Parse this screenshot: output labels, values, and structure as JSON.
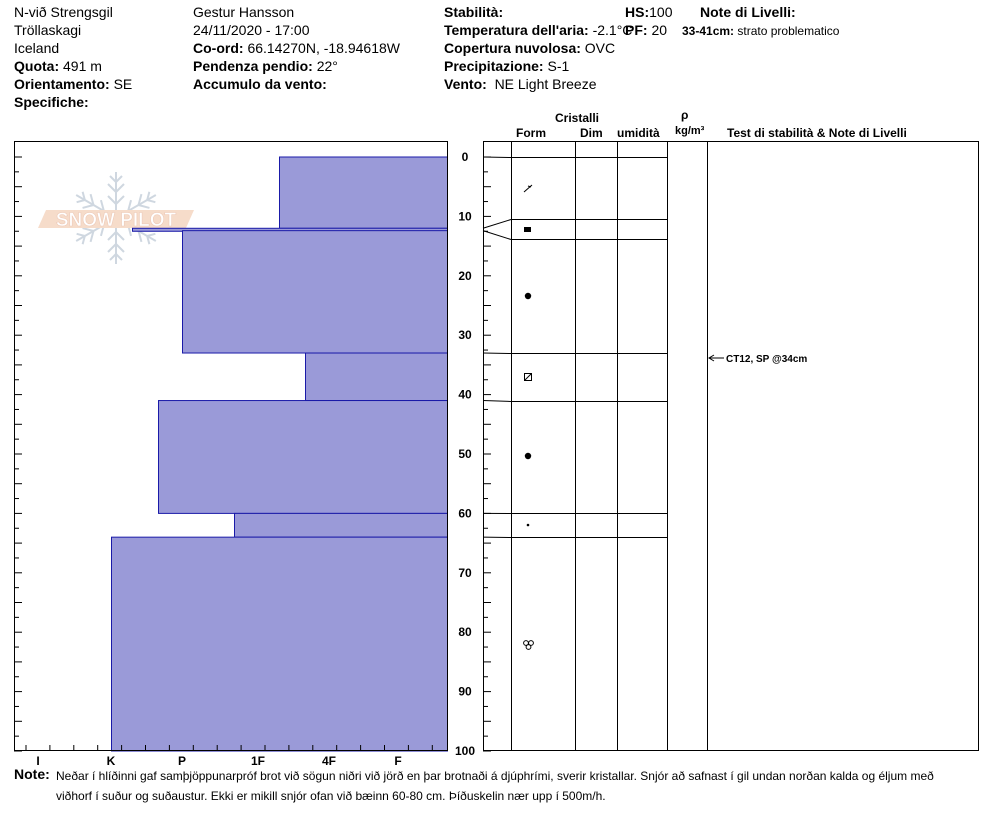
{
  "header": {
    "location": "N-við Strengsgil",
    "region": "Tröllaskagi",
    "country": "Iceland",
    "elevation_label": "Quota:",
    "elevation": "491 m",
    "aspect_label": "Orientamento:",
    "aspect": "SE",
    "specifics_label": "Specifiche:",
    "observer": "Gestur Hansson",
    "datetime": "24/11/2020 - 17:00",
    "coord_label": "Co-ord:",
    "coord": "66.14270N, -18.94618W",
    "slope_label": "Pendenza pendio:",
    "slope": "22°",
    "wind_load_label": "Accumulo da vento:",
    "stability_label": "Stabilità:",
    "air_temp_label": "Temperatura dell'aria:",
    "air_temp": "-2.1°C",
    "cloud_label": "Copertura nuvolosa:",
    "cloud": "OVC",
    "precip_label": "Precipitazione:",
    "precip": "S-1",
    "wind_label": "Vento:",
    "wind": "NE Light Breeze",
    "hs_label": "HS:",
    "hs": "100",
    "pf_label": "PF:",
    "pf": "20",
    "layer_notes_label": "Note di Livelli:",
    "layer_notes_range": "33-41cm:",
    "layer_notes_text": "strato problematico"
  },
  "columns": {
    "crystals": "Cristalli",
    "form": "Form",
    "size": "Dim",
    "moisture": "umidità",
    "rho": "ρ",
    "density_unit": "kg/m³",
    "tests": "Test di stabilità & Note di Livelli"
  },
  "logo_text": "SNOW PILOT",
  "hardness_axis": [
    "I",
    "K",
    "P",
    "1F",
    "4F",
    "F"
  ],
  "depth_axis": [
    "0",
    "10",
    "20",
    "30",
    "40",
    "50",
    "60",
    "70",
    "80",
    "90",
    "100"
  ],
  "stability_test": "CT12, SP @34cm",
  "note_label": "Note:",
  "note_text": "Neðar í hlíðinni gaf samþjöppunarpróf brot við sögun niðri við jörð en þar brotnaði á djúphrími, sverir kristallar. Snjór að safnast í gil undan norðan kalda og éljum með viðhorf í suður og suðaustur. Ekki er mikill snjór ofan við bæinn 60-80 cm. Þíðuskelin nær upp í 500m/h.",
  "colors": {
    "layer_fill": "#9a9ad8",
    "layer_stroke": "#1a1aa8"
  },
  "chart_data": {
    "type": "snow_profile",
    "depth_unit": "cm",
    "depth_range": [
      0,
      100
    ],
    "hardness_scale": [
      "I",
      "K",
      "P",
      "1F",
      "4F",
      "F"
    ],
    "layers": [
      {
        "top": 0,
        "bottom": 12,
        "hardness": "1F-",
        "form": "decomposing"
      },
      {
        "top": 12,
        "bottom": 12.4,
        "hardness": "K-",
        "form": "surface hoar"
      },
      {
        "top": 12.4,
        "bottom": 33,
        "hardness": "P",
        "form": "rounded"
      },
      {
        "top": 33,
        "bottom": 41,
        "hardness": "4F+",
        "form": "faceted-rounded"
      },
      {
        "top": 41,
        "bottom": 60,
        "hardness": "P+",
        "form": "rounded"
      },
      {
        "top": 60,
        "bottom": 64,
        "hardness": "1F+",
        "form": "small rounded"
      },
      {
        "top": 64,
        "bottom": 100,
        "hardness": "K",
        "form": "melt forms"
      }
    ],
    "tests": [
      {
        "depth": 34,
        "result": "CT12, SP"
      }
    ]
  }
}
